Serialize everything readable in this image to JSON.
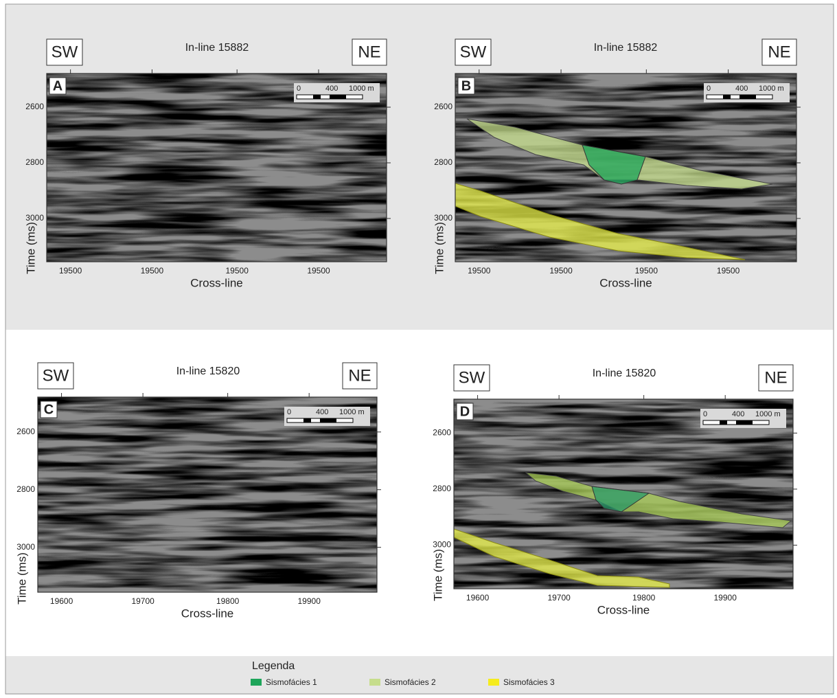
{
  "panels": [
    {
      "label": "A",
      "title": "In-line 15882",
      "left": "SW",
      "right": "NE",
      "scale": [
        "0",
        "400",
        "1000 m"
      ],
      "yticks": [
        "2600",
        "2800",
        "3000"
      ],
      "y_label": "Time (ms)",
      "xticks": [
        "19500",
        "19500",
        "19500",
        "19500"
      ],
      "x_label": "Cross-line"
    },
    {
      "label": "B",
      "title": "In-line 15882",
      "left": "SW",
      "right": "NE",
      "scale": [
        "0",
        "400",
        "1000 m"
      ],
      "yticks": [
        "2600",
        "2800",
        "3000"
      ],
      "y_label": "Time (ms)",
      "xticks": [
        "19500",
        "19500",
        "19500",
        "19500"
      ],
      "x_label": "Cross-line"
    },
    {
      "label": "C",
      "title": "In-line 15820",
      "left": "SW",
      "right": "NE",
      "scale": [
        "0",
        "400",
        "1000 m"
      ],
      "yticks": [
        "2600",
        "2800",
        "3000"
      ],
      "y_label": "Time (ms)",
      "xticks": [
        "19600",
        "19700",
        "19800",
        "19900"
      ],
      "x_label": "Cross-line"
    },
    {
      "label": "D",
      "title": "In-line 15820",
      "left": "SW",
      "right": "NE",
      "scale": [
        "0",
        "400",
        "1000 m"
      ],
      "yticks": [
        "2600",
        "2800",
        "3000"
      ],
      "y_label": "Time (ms)",
      "xticks": [
        "19600",
        "19700",
        "19800",
        "19900"
      ],
      "x_label": "Cross-line"
    }
  ],
  "legend": {
    "title": "Legenda",
    "items": [
      "Sismofácies 1",
      "Sismofácies 2",
      "Sismofácies 3"
    ]
  }
}
